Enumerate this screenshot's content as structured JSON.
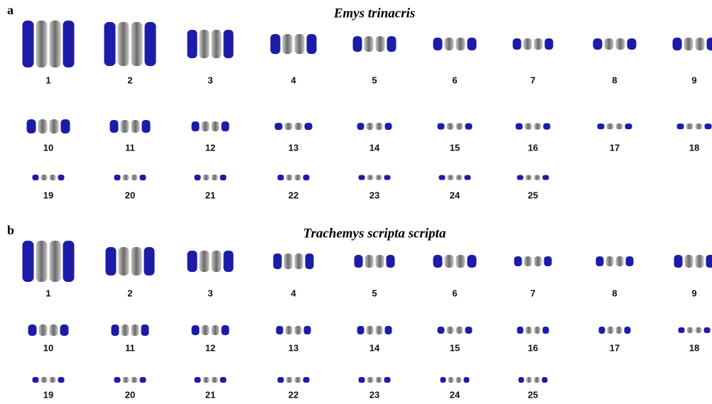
{
  "panels": [
    {
      "label": "a",
      "title": "Emys trinacris",
      "chromosomes": [
        "1",
        "2",
        "3",
        "4",
        "5",
        "6",
        "7",
        "8",
        "9",
        "10",
        "11",
        "12",
        "13",
        "14",
        "15",
        "16",
        "17",
        "18",
        "19",
        "20",
        "21",
        "22",
        "23",
        "24",
        "25"
      ]
    },
    {
      "label": "b",
      "title": "Trachemys scripta scripta",
      "chromosomes": [
        "1",
        "2",
        "3",
        "4",
        "5",
        "6",
        "7",
        "8",
        "9",
        "10",
        "11",
        "12",
        "13",
        "14",
        "15",
        "16",
        "17",
        "18",
        "19",
        "20",
        "21",
        "22",
        "23",
        "24",
        "25"
      ]
    }
  ]
}
